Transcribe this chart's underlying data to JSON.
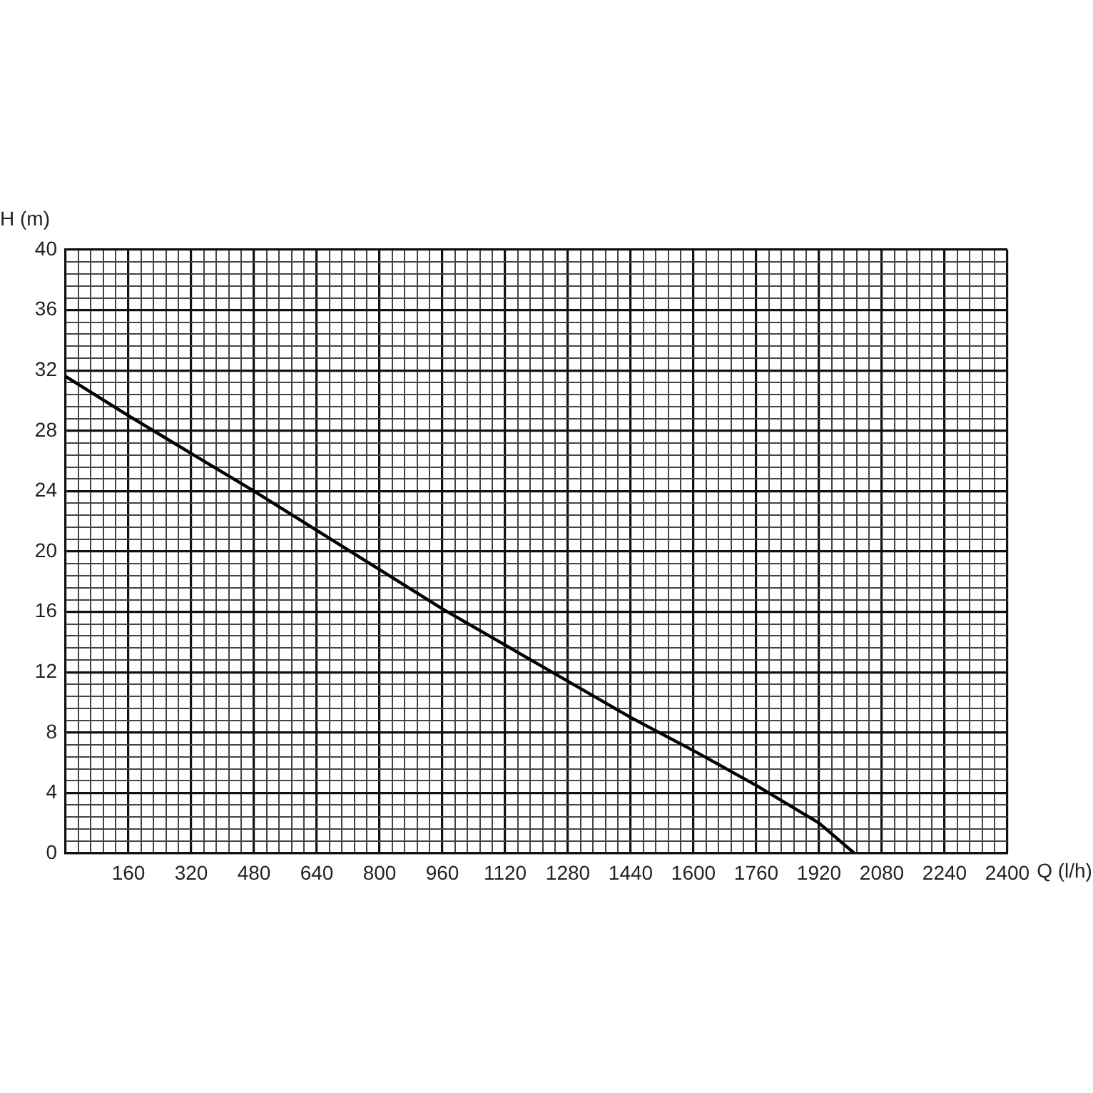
{
  "chart_data": {
    "type": "line",
    "xlabel": "Q (l/h)",
    "ylabel": "H (m)",
    "x": [
      0,
      160,
      320,
      480,
      640,
      800,
      960,
      1120,
      1280,
      1440,
      1600,
      1760,
      1920,
      2010
    ],
    "series": [
      {
        "color": "#000000",
        "values": [
          31.6,
          29.0,
          26.5,
          24.0,
          21.4,
          18.8,
          16.2,
          13.8,
          11.4,
          9.0,
          6.8,
          4.5,
          2.0,
          0
        ]
      }
    ],
    "xlim": [
      0,
      2400
    ],
    "ylim": [
      0,
      40
    ],
    "xticks": [
      {
        "value": 0,
        "label": null
      },
      {
        "value": 32,
        "label": null
      },
      {
        "value": 64,
        "label": null
      },
      {
        "value": 96,
        "label": null
      },
      {
        "value": 128,
        "label": null
      },
      160,
      {
        "value": 192,
        "label": null
      },
      {
        "value": 224,
        "label": null
      },
      {
        "value": 256,
        "label": null
      },
      {
        "value": 288,
        "label": null
      },
      320,
      {
        "value": 352,
        "label": null
      },
      {
        "value": 384,
        "label": null
      },
      {
        "value": 416,
        "label": null
      },
      {
        "value": 448,
        "label": null
      },
      480,
      {
        "value": 512,
        "label": null
      },
      {
        "value": 544,
        "label": null
      },
      {
        "value": 576,
        "label": null
      },
      {
        "value": 608,
        "label": null
      },
      640,
      {
        "value": 672,
        "label": null
      },
      {
        "value": 704,
        "label": null
      },
      {
        "value": 736,
        "label": null
      },
      {
        "value": 768,
        "label": null
      },
      800,
      {
        "value": 832,
        "label": null
      },
      {
        "value": 864,
        "label": null
      },
      {
        "value": 896,
        "label": null
      },
      {
        "value": 928,
        "label": null
      },
      960,
      {
        "value": 992,
        "label": null
      },
      {
        "value": 1024,
        "label": null
      },
      {
        "value": 1056,
        "label": null
      },
      {
        "value": 1088,
        "label": null
      },
      1120,
      {
        "value": 1152,
        "label": null
      },
      {
        "value": 1184,
        "label": null
      },
      {
        "value": 1216,
        "label": null
      },
      {
        "value": 1248,
        "label": null
      },
      1280,
      {
        "value": 1312,
        "label": null
      },
      {
        "value": 1344,
        "label": null
      },
      {
        "value": 1376,
        "label": null
      },
      {
        "value": 1408,
        "label": null
      },
      1440,
      {
        "value": 1472,
        "label": null
      },
      {
        "value": 1504,
        "label": null
      },
      {
        "value": 1536,
        "label": null
      },
      {
        "value": 1568,
        "label": null
      },
      1600,
      {
        "value": 1632,
        "label": null
      },
      {
        "value": 1664,
        "label": null
      },
      {
        "value": 1696,
        "label": null
      },
      {
        "value": 1728,
        "label": null
      },
      1760,
      {
        "value": 1792,
        "label": null
      },
      {
        "value": 1824,
        "label": null
      },
      {
        "value": 1856,
        "label": null
      },
      {
        "value": 1888,
        "label": null
      },
      1920,
      {
        "value": 1952,
        "label": null
      },
      {
        "value": 1984,
        "label": null
      },
      {
        "value": 2016,
        "label": null
      },
      {
        "value": 2048,
        "label": null
      },
      2080,
      {
        "value": 2112,
        "label": null
      },
      {
        "value": 2144,
        "label": null
      },
      {
        "value": 2176,
        "label": null
      },
      {
        "value": 2208,
        "label": null
      },
      2240,
      {
        "value": 2272,
        "label": null
      },
      {
        "value": 2304,
        "label": null
      },
      {
        "value": 2336,
        "label": null
      },
      {
        "value": 2368,
        "label": null
      },
      2400
    ],
    "yticks": [
      0,
      {
        "value": 0.8,
        "label": null
      },
      {
        "value": 1.6,
        "label": null
      },
      {
        "value": 2.4,
        "label": null
      },
      {
        "value": 3.2,
        "label": null
      },
      4,
      {
        "value": 4.8,
        "label": null
      },
      {
        "value": 5.6,
        "label": null
      },
      {
        "value": 6.4,
        "label": null
      },
      {
        "value": 7.2,
        "label": null
      },
      8,
      {
        "value": 8.8,
        "label": null
      },
      {
        "value": 9.6,
        "label": null
      },
      {
        "value": 10.4,
        "label": null
      },
      {
        "value": 11.2,
        "label": null
      },
      12,
      {
        "value": 12.8,
        "label": null
      },
      {
        "value": 13.6,
        "label": null
      },
      {
        "value": 14.4,
        "label": null
      },
      {
        "value": 15.2,
        "label": null
      },
      16,
      {
        "value": 16.8,
        "label": null
      },
      {
        "value": 17.6,
        "label": null
      },
      {
        "value": 18.4,
        "label": null
      },
      {
        "value": 19.2,
        "label": null
      },
      20,
      {
        "value": 20.8,
        "label": null
      },
      {
        "value": 21.6,
        "label": null
      },
      {
        "value": 22.4,
        "label": null
      },
      {
        "value": 23.2,
        "label": null
      },
      24,
      {
        "value": 24.8,
        "label": null
      },
      {
        "value": 25.6,
        "label": null
      },
      {
        "value": 26.4,
        "label": null
      },
      {
        "value": 27.2,
        "label": null
      },
      28,
      {
        "value": 28.8,
        "label": null
      },
      {
        "value": 29.6,
        "label": null
      },
      {
        "value": 30.4,
        "label": null
      },
      {
        "value": 31.2,
        "label": null
      },
      32,
      {
        "value": 32.8,
        "label": null
      },
      {
        "value": 33.6,
        "label": null
      },
      {
        "value": 34.4,
        "label": null
      },
      {
        "value": 35.2,
        "label": null
      },
      36,
      {
        "value": 36.8,
        "label": null
      },
      {
        "value": 37.6,
        "label": null
      },
      {
        "value": 38.4,
        "label": null
      },
      {
        "value": 39.2,
        "label": null
      },
      40
    ],
    "grid": true,
    "legend": false,
    "marker": "none",
    "line_style": "solid"
  }
}
